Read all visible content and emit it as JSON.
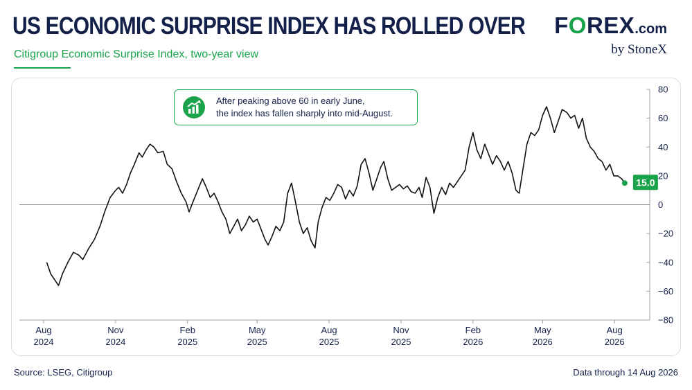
{
  "header": {
    "title": "US ECONOMIC SURPRISE INDEX HAS ROLLED OVER",
    "subtitle": "Citigroup Economic Surprise Index, two-year view"
  },
  "logo": {
    "brand_prefix": "F",
    "brand_o": "O",
    "brand_suffix": "REX",
    "brand_domain": ".com",
    "byline": "by StoneX"
  },
  "annotation": {
    "line1": "After peaking above 60 in early June,",
    "line2": "the index has fallen sharply into mid-August.",
    "icon": "trending-up-chart-icon"
  },
  "footer": {
    "source": "Source: LSEG, Citigroup",
    "data_through": "Data through 14 Aug 2026"
  },
  "colors": {
    "brand_navy": "#12204a",
    "accent_green": "#1aa34a",
    "line": "#111111",
    "zero_line": "#8a8f99"
  },
  "chart_data": {
    "type": "line",
    "title": "",
    "xlabel": "",
    "ylabel": "",
    "y_axis_side": "right",
    "ylim": [
      -80,
      80
    ],
    "yticks": [
      80,
      60,
      40,
      20,
      0,
      -20,
      -40,
      -60,
      -80
    ],
    "ytick_labels": [
      "80",
      "60",
      "40",
      "20",
      "0",
      "−20",
      "−40",
      "−60",
      "−80"
    ],
    "xlim": [
      "2024-07-01",
      "2026-09-15"
    ],
    "xticks": [
      "2024-08-01",
      "2024-11-01",
      "2025-02-01",
      "2025-05-01",
      "2025-08-01",
      "2025-11-01",
      "2026-02-01",
      "2026-05-01",
      "2026-08-01"
    ],
    "xtick_labels": [
      [
        "Aug",
        "2024"
      ],
      [
        "Nov",
        "2024"
      ],
      [
        "Feb",
        "2025"
      ],
      [
        "May",
        "2025"
      ],
      [
        "Aug",
        "2025"
      ],
      [
        "Nov",
        "2025"
      ],
      [
        "Feb",
        "2026"
      ],
      [
        "May",
        "2026"
      ],
      [
        "Aug",
        "2026"
      ]
    ],
    "zero_line": true,
    "grid": false,
    "legend": "none",
    "last_value_label": "15.0",
    "series": [
      {
        "points": [
          [
            "2024-08-05",
            -40
          ],
          [
            "2024-08-10",
            -48
          ],
          [
            "2024-08-15",
            -52
          ],
          [
            "2024-08-20",
            -56
          ],
          [
            "2024-08-25",
            -48
          ],
          [
            "2024-09-01",
            -40
          ],
          [
            "2024-09-08",
            -33
          ],
          [
            "2024-09-15",
            -35
          ],
          [
            "2024-09-20",
            -38
          ],
          [
            "2024-09-28",
            -30
          ],
          [
            "2024-10-05",
            -24
          ],
          [
            "2024-10-12",
            -15
          ],
          [
            "2024-10-18",
            -5
          ],
          [
            "2024-10-25",
            5
          ],
          [
            "2024-11-01",
            10
          ],
          [
            "2024-11-05",
            12
          ],
          [
            "2024-11-10",
            8
          ],
          [
            "2024-11-15",
            14
          ],
          [
            "2024-11-20",
            22
          ],
          [
            "2024-11-25",
            28
          ],
          [
            "2024-12-01",
            36
          ],
          [
            "2024-12-05",
            33
          ],
          [
            "2024-12-10",
            38
          ],
          [
            "2024-12-15",
            42
          ],
          [
            "2024-12-20",
            40
          ],
          [
            "2024-12-25",
            36
          ],
          [
            "2025-01-01",
            37
          ],
          [
            "2025-01-06",
            28
          ],
          [
            "2025-01-12",
            25
          ],
          [
            "2025-01-18",
            16
          ],
          [
            "2025-01-24",
            8
          ],
          [
            "2025-01-30",
            2
          ],
          [
            "2025-02-03",
            -5
          ],
          [
            "2025-02-08",
            2
          ],
          [
            "2025-02-14",
            10
          ],
          [
            "2025-02-20",
            18
          ],
          [
            "2025-02-25",
            12
          ],
          [
            "2025-03-02",
            5
          ],
          [
            "2025-03-07",
            8
          ],
          [
            "2025-03-12",
            2
          ],
          [
            "2025-03-17",
            -5
          ],
          [
            "2025-03-22",
            -10
          ],
          [
            "2025-03-27",
            -20
          ],
          [
            "2025-04-01",
            -15
          ],
          [
            "2025-04-06",
            -10
          ],
          [
            "2025-04-11",
            -18
          ],
          [
            "2025-04-16",
            -14
          ],
          [
            "2025-04-21",
            -8
          ],
          [
            "2025-04-26",
            -12
          ],
          [
            "2025-05-01",
            -10
          ],
          [
            "2025-05-06",
            -17
          ],
          [
            "2025-05-11",
            -24
          ],
          [
            "2025-05-15",
            -28
          ],
          [
            "2025-05-20",
            -22
          ],
          [
            "2025-05-25",
            -15
          ],
          [
            "2025-05-30",
            -18
          ],
          [
            "2025-06-04",
            -12
          ],
          [
            "2025-06-09",
            8
          ],
          [
            "2025-06-14",
            15
          ],
          [
            "2025-06-19",
            2
          ],
          [
            "2025-06-24",
            -12
          ],
          [
            "2025-06-29",
            -20
          ],
          [
            "2025-07-04",
            -16
          ],
          [
            "2025-07-09",
            -25
          ],
          [
            "2025-07-14",
            -30
          ],
          [
            "2025-07-18",
            -12
          ],
          [
            "2025-07-23",
            -2
          ],
          [
            "2025-07-28",
            5
          ],
          [
            "2025-08-02",
            3
          ],
          [
            "2025-08-07",
            8
          ],
          [
            "2025-08-12",
            14
          ],
          [
            "2025-08-17",
            12
          ],
          [
            "2025-08-22",
            4
          ],
          [
            "2025-08-27",
            10
          ],
          [
            "2025-09-01",
            6
          ],
          [
            "2025-09-06",
            13
          ],
          [
            "2025-09-11",
            28
          ],
          [
            "2025-09-16",
            32
          ],
          [
            "2025-09-21",
            22
          ],
          [
            "2025-09-26",
            10
          ],
          [
            "2025-10-01",
            18
          ],
          [
            "2025-10-06",
            26
          ],
          [
            "2025-10-10",
            30
          ],
          [
            "2025-10-15",
            18
          ],
          [
            "2025-10-20",
            10
          ],
          [
            "2025-10-25",
            12
          ],
          [
            "2025-10-30",
            14
          ],
          [
            "2025-11-04",
            11
          ],
          [
            "2025-11-09",
            13
          ],
          [
            "2025-11-14",
            9
          ],
          [
            "2025-11-19",
            8
          ],
          [
            "2025-11-24",
            12
          ],
          [
            "2025-11-28",
            5
          ],
          [
            "2025-12-03",
            19
          ],
          [
            "2025-12-08",
            12
          ],
          [
            "2025-12-13",
            -6
          ],
          [
            "2025-12-18",
            5
          ],
          [
            "2025-12-23",
            12
          ],
          [
            "2025-12-28",
            7
          ],
          [
            "2026-01-02",
            15
          ],
          [
            "2026-01-07",
            12
          ],
          [
            "2026-01-12",
            16
          ],
          [
            "2026-01-17",
            20
          ],
          [
            "2026-01-22",
            24
          ],
          [
            "2026-01-27",
            40
          ],
          [
            "2026-02-01",
            50
          ],
          [
            "2026-02-06",
            38
          ],
          [
            "2026-02-11",
            32
          ],
          [
            "2026-02-16",
            42
          ],
          [
            "2026-02-21",
            35
          ],
          [
            "2026-02-26",
            28
          ],
          [
            "2026-03-03",
            34
          ],
          [
            "2026-03-08",
            30
          ],
          [
            "2026-03-13",
            24
          ],
          [
            "2026-03-18",
            30
          ],
          [
            "2026-03-23",
            22
          ],
          [
            "2026-03-28",
            10
          ],
          [
            "2026-04-01",
            8
          ],
          [
            "2026-04-06",
            25
          ],
          [
            "2026-04-11",
            42
          ],
          [
            "2026-04-16",
            50
          ],
          [
            "2026-04-21",
            48
          ],
          [
            "2026-04-26",
            52
          ],
          [
            "2026-05-01",
            62
          ],
          [
            "2026-05-06",
            68
          ],
          [
            "2026-05-11",
            60
          ],
          [
            "2026-05-16",
            50
          ],
          [
            "2026-05-21",
            58
          ],
          [
            "2026-05-26",
            66
          ],
          [
            "2026-06-01",
            64
          ],
          [
            "2026-06-06",
            60
          ],
          [
            "2026-06-11",
            62
          ],
          [
            "2026-06-16",
            53
          ],
          [
            "2026-06-21",
            60
          ],
          [
            "2026-06-26",
            46
          ],
          [
            "2026-07-01",
            40
          ],
          [
            "2026-07-06",
            37
          ],
          [
            "2026-07-11",
            32
          ],
          [
            "2026-07-16",
            30
          ],
          [
            "2026-07-21",
            24
          ],
          [
            "2026-07-26",
            28
          ],
          [
            "2026-07-31",
            20
          ],
          [
            "2026-08-05",
            20
          ],
          [
            "2026-08-10",
            18
          ],
          [
            "2026-08-14",
            15
          ]
        ]
      }
    ]
  }
}
